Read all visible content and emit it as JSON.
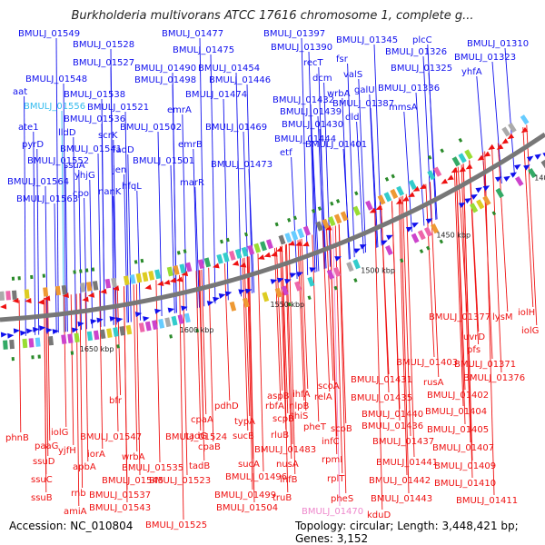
{
  "title": "Burkholderia multivorans ATCC 17616 chromosome 1, complete g...",
  "footer": {
    "accession": "Accession: NC_010804",
    "topology": "Topology: circular; Length: 3,448,421 bp; Genes: 3,152"
  },
  "colors": {
    "forward": "#1010ee",
    "reverse": "#ee1111",
    "backbone": "#777777",
    "highlight_cyan": "#33bbee",
    "highlight_pink": "#ee88cc",
    "tick": "#2a8a2a"
  },
  "kbp_labels": [
    "1400 kbp",
    "1450 kbp",
    "1500 kbp",
    "1550 kbp",
    "1600 kbp",
    "1650 kbp"
  ],
  "top_labels": [
    {
      "text": "BMULJ_01549",
      "highlight": ""
    },
    {
      "text": "BMULJ_01528",
      "highlight": ""
    },
    {
      "text": "BMULJ_01527",
      "highlight": ""
    },
    {
      "text": "BMULJ_01548",
      "highlight": ""
    },
    {
      "text": "aat",
      "highlight": ""
    },
    {
      "text": "BMULJ_01538",
      "highlight": ""
    },
    {
      "text": "BMULJ_01556",
      "highlight": "cyan"
    },
    {
      "text": "BMULJ_01521",
      "highlight": ""
    },
    {
      "text": "BMULJ_01536",
      "highlight": ""
    },
    {
      "text": "ate1",
      "highlight": ""
    },
    {
      "text": "lldD",
      "highlight": ""
    },
    {
      "text": "scrK",
      "highlight": ""
    },
    {
      "text": "pyrD",
      "highlight": ""
    },
    {
      "text": "BMULJ_01541",
      "highlight": ""
    },
    {
      "text": "fadD",
      "highlight": ""
    },
    {
      "text": "BMULJ_01552",
      "highlight": ""
    },
    {
      "text": "ssuA",
      "highlight": ""
    },
    {
      "text": "jen",
      "highlight": ""
    },
    {
      "text": "yhjG",
      "highlight": ""
    },
    {
      "text": "hfqL",
      "highlight": ""
    },
    {
      "text": "BMULJ_01564",
      "highlight": ""
    },
    {
      "text": "cpo",
      "highlight": ""
    },
    {
      "text": "nanK",
      "highlight": ""
    },
    {
      "text": "BMULJ_01563",
      "highlight": ""
    },
    {
      "text": "BMULJ_01477",
      "highlight": ""
    },
    {
      "text": "BMULJ_01475",
      "highlight": ""
    },
    {
      "text": "BMULJ_01490",
      "highlight": ""
    },
    {
      "text": "BMULJ_01454",
      "highlight": ""
    },
    {
      "text": "BMULJ_01498",
      "highlight": ""
    },
    {
      "text": "BMULJ_01446",
      "highlight": ""
    },
    {
      "text": "BMULJ_01474",
      "highlight": ""
    },
    {
      "text": "emrA",
      "highlight": ""
    },
    {
      "text": "BMULJ_01502",
      "highlight": ""
    },
    {
      "text": "BMULJ_01469",
      "highlight": ""
    },
    {
      "text": "emrB",
      "highlight": ""
    },
    {
      "text": "BMULJ_01501",
      "highlight": ""
    },
    {
      "text": "BMULJ_01473",
      "highlight": ""
    },
    {
      "text": "marR",
      "highlight": ""
    },
    {
      "text": "BMULJ_01397",
      "highlight": ""
    },
    {
      "text": "BMULJ_01390",
      "highlight": ""
    },
    {
      "text": "recT",
      "highlight": ""
    },
    {
      "text": "dcm",
      "highlight": ""
    },
    {
      "text": "wrbA",
      "highlight": ""
    },
    {
      "text": "BMULJ_01432",
      "highlight": ""
    },
    {
      "text": "BMULJ_01387",
      "highlight": ""
    },
    {
      "text": "BMULJ_01439",
      "highlight": ""
    },
    {
      "text": "dld",
      "highlight": ""
    },
    {
      "text": "BMULJ_01430",
      "highlight": ""
    },
    {
      "text": "BMULJ_01444",
      "highlight": ""
    },
    {
      "text": "etf",
      "highlight": ""
    },
    {
      "text": "BMULJ_01401",
      "highlight": ""
    },
    {
      "text": "BMULJ_01345",
      "highlight": ""
    },
    {
      "text": "fsr",
      "highlight": ""
    },
    {
      "text": "valS",
      "highlight": ""
    },
    {
      "text": "galU",
      "highlight": ""
    },
    {
      "text": "plcC",
      "highlight": ""
    },
    {
      "text": "BMULJ_01326",
      "highlight": ""
    },
    {
      "text": "BMULJ_01310",
      "highlight": ""
    },
    {
      "text": "BMULJ_01323",
      "highlight": ""
    },
    {
      "text": "BMULJ_01325",
      "highlight": ""
    },
    {
      "text": "yhfA",
      "highlight": ""
    },
    {
      "text": "BMULJ_01336",
      "highlight": ""
    },
    {
      "text": "mmsA",
      "highlight": ""
    }
  ],
  "bottom_labels": [
    {
      "text": "phnB",
      "highlight": ""
    },
    {
      "text": "iolG",
      "highlight": ""
    },
    {
      "text": "paaG",
      "highlight": ""
    },
    {
      "text": "yjfH",
      "highlight": ""
    },
    {
      "text": "bfr",
      "highlight": ""
    },
    {
      "text": "BMULJ_01547",
      "highlight": ""
    },
    {
      "text": "ssuD",
      "highlight": ""
    },
    {
      "text": "iorA",
      "highlight": ""
    },
    {
      "text": "apbA",
      "highlight": ""
    },
    {
      "text": "wrbA",
      "highlight": ""
    },
    {
      "text": "ssuC",
      "highlight": ""
    },
    {
      "text": "BMULJ_01535",
      "highlight": ""
    },
    {
      "text": "ssuB",
      "highlight": ""
    },
    {
      "text": "rnb",
      "highlight": ""
    },
    {
      "text": "BMULJ_01545",
      "highlight": ""
    },
    {
      "text": "BMULJ_01523",
      "highlight": ""
    },
    {
      "text": "BMULJ_01537",
      "highlight": ""
    },
    {
      "text": "amiA",
      "highlight": ""
    },
    {
      "text": "BMULJ_01543",
      "highlight": ""
    },
    {
      "text": "BMULJ_01525",
      "highlight": ""
    },
    {
      "text": "BMULJ_01524",
      "highlight": ""
    },
    {
      "text": "cpaA",
      "highlight": ""
    },
    {
      "text": "tadG",
      "highlight": ""
    },
    {
      "text": "cpaB",
      "highlight": ""
    },
    {
      "text": "tadB",
      "highlight": ""
    },
    {
      "text": "pdhD",
      "highlight": ""
    },
    {
      "text": "typA",
      "highlight": ""
    },
    {
      "text": "sucB",
      "highlight": ""
    },
    {
      "text": "sucA",
      "highlight": ""
    },
    {
      "text": "BMULJ_01496",
      "highlight": ""
    },
    {
      "text": "BMULJ_01499",
      "highlight": ""
    },
    {
      "text": "BMULJ_01504",
      "highlight": ""
    },
    {
      "text": "aspB",
      "highlight": ""
    },
    {
      "text": "rbfA",
      "highlight": ""
    },
    {
      "text": "scpB",
      "highlight": ""
    },
    {
      "text": "rluB",
      "highlight": ""
    },
    {
      "text": "BMULJ_01483",
      "highlight": ""
    },
    {
      "text": "nusA",
      "highlight": ""
    },
    {
      "text": "infB",
      "highlight": ""
    },
    {
      "text": "truB",
      "highlight": ""
    },
    {
      "text": "ihfA",
      "highlight": ""
    },
    {
      "text": "nlpB",
      "highlight": ""
    },
    {
      "text": "thiS",
      "highlight": ""
    },
    {
      "text": "pheT",
      "highlight": ""
    },
    {
      "text": "infC",
      "highlight": ""
    },
    {
      "text": "rpmI",
      "highlight": ""
    },
    {
      "text": "rplT",
      "highlight": ""
    },
    {
      "text": "pheS",
      "highlight": ""
    },
    {
      "text": "BMULJ_01470",
      "highlight": "pink"
    },
    {
      "text": "scoA",
      "highlight": ""
    },
    {
      "text": "relA",
      "highlight": ""
    },
    {
      "text": "scoB",
      "highlight": ""
    },
    {
      "text": "BMULJ_01431",
      "highlight": ""
    },
    {
      "text": "BMULJ_01435",
      "highlight": ""
    },
    {
      "text": "BMULJ_01440",
      "highlight": ""
    },
    {
      "text": "BMULJ_01436",
      "highlight": ""
    },
    {
      "text": "BMULJ_01437",
      "highlight": ""
    },
    {
      "text": "BMULJ_01441",
      "highlight": ""
    },
    {
      "text": "BMULJ_01442",
      "highlight": ""
    },
    {
      "text": "BMULJ_01443",
      "highlight": ""
    },
    {
      "text": "kduD",
      "highlight": ""
    },
    {
      "text": "BMULJ_01403",
      "highlight": ""
    },
    {
      "text": "rusA",
      "highlight": ""
    },
    {
      "text": "BMULJ_01402",
      "highlight": ""
    },
    {
      "text": "BMULJ_01404",
      "highlight": ""
    },
    {
      "text": "BMULJ_01405",
      "highlight": ""
    },
    {
      "text": "BMULJ_01407",
      "highlight": ""
    },
    {
      "text": "BMULJ_01409",
      "highlight": ""
    },
    {
      "text": "BMULJ_01410",
      "highlight": ""
    },
    {
      "text": "BMULJ_01411",
      "highlight": ""
    },
    {
      "text": "BMULJ_01377",
      "highlight": ""
    },
    {
      "text": "BMULJ_01371",
      "highlight": ""
    },
    {
      "text": "BMULJ_01376",
      "highlight": ""
    },
    {
      "text": "uvrD",
      "highlight": ""
    },
    {
      "text": "pfs",
      "highlight": ""
    },
    {
      "text": "lysM",
      "highlight": ""
    },
    {
      "text": "iolH",
      "highlight": ""
    },
    {
      "text": "iolG",
      "highlight": ""
    }
  ]
}
